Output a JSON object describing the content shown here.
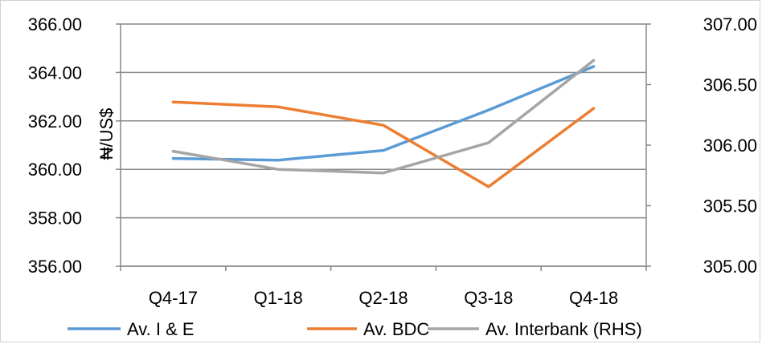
{
  "chart_data": {
    "type": "line",
    "categories": [
      "Q4-17",
      "Q1-18",
      "Q2-18",
      "Q3-18",
      "Q4-18"
    ],
    "ylabel": "₦/US$",
    "ylim": [
      356.0,
      366.0
    ],
    "y2lim": [
      305.0,
      307.0
    ],
    "yticks": [
      "356.00",
      "358.00",
      "360.00",
      "362.00",
      "364.00",
      "366.00"
    ],
    "y2ticks": [
      "305.00",
      "305.50",
      "306.00",
      "306.50",
      "307.00"
    ],
    "grid": true,
    "legend_position": "bottom",
    "series": [
      {
        "name": "Av. I & E",
        "axis": "left",
        "color": "#5B9BD5",
        "values": [
          360.45,
          360.38,
          360.78,
          362.45,
          364.25
        ]
      },
      {
        "name": "Av. BDC",
        "axis": "left",
        "color": "#ED7D31",
        "values": [
          362.78,
          362.58,
          361.82,
          359.28,
          362.52
        ]
      },
      {
        "name": "Av. Interbank (RHS)",
        "axis": "right",
        "color": "#A5A5A5",
        "values": [
          305.95,
          305.8,
          305.77,
          306.02,
          306.7
        ]
      }
    ]
  }
}
